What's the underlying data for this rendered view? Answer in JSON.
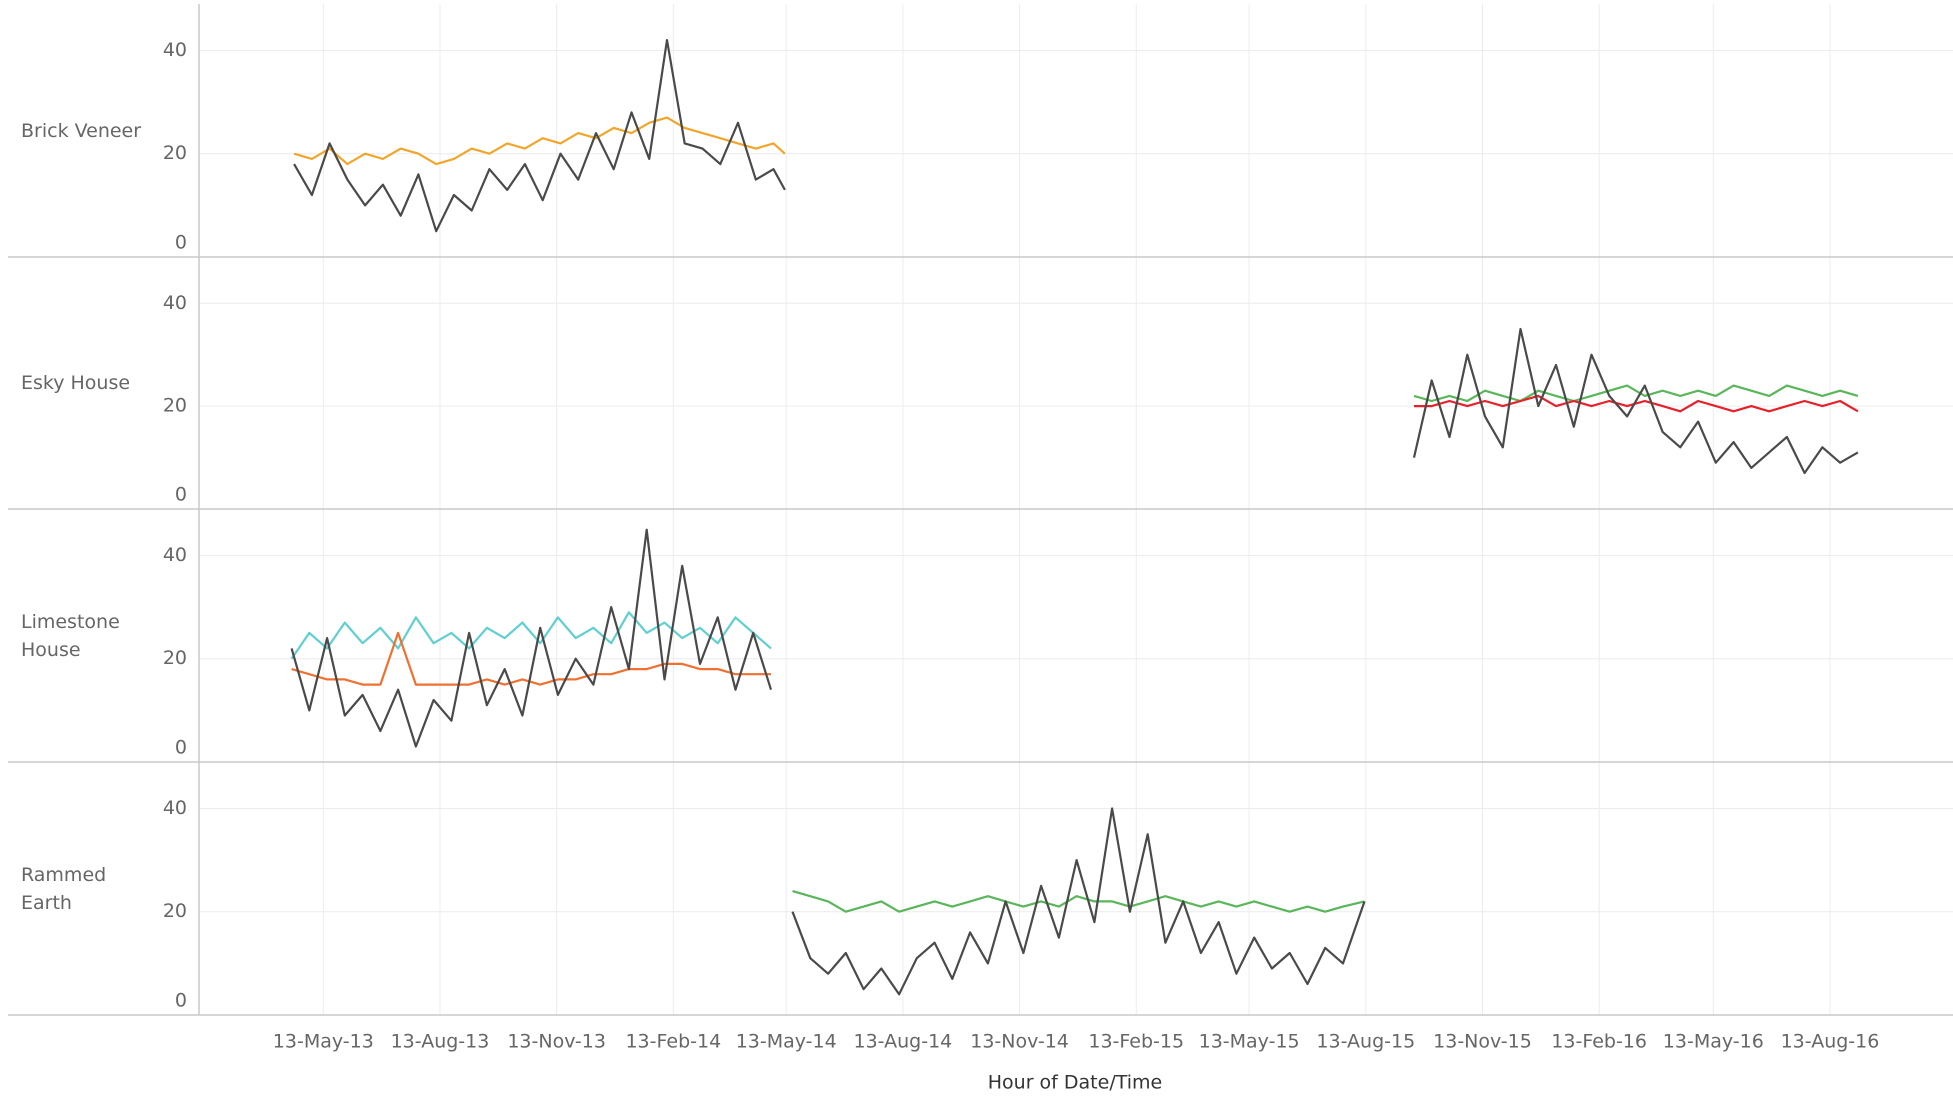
{
  "chart_data": {
    "type": "line",
    "x_label": "Hour of Date/Time",
    "xlim": [
      "2013-02-04",
      "2016-11-18"
    ],
    "xticks": [
      {
        "value": "2013-05-13",
        "label": "13-May-13"
      },
      {
        "value": "2013-08-13",
        "label": "13-Aug-13"
      },
      {
        "value": "2013-11-13",
        "label": "13-Nov-13"
      },
      {
        "value": "2014-02-13",
        "label": "13-Feb-14"
      },
      {
        "value": "2014-05-13",
        "label": "13-May-14"
      },
      {
        "value": "2014-08-13",
        "label": "13-Aug-14"
      },
      {
        "value": "2014-11-13",
        "label": "13-Nov-14"
      },
      {
        "value": "2015-02-13",
        "label": "13-Feb-15"
      },
      {
        "value": "2015-05-13",
        "label": "13-May-15"
      },
      {
        "value": "2015-08-13",
        "label": "13-Aug-15"
      },
      {
        "value": "2015-11-13",
        "label": "13-Nov-15"
      },
      {
        "value": "2016-02-13",
        "label": "13-Feb-16"
      },
      {
        "value": "2016-05-13",
        "label": "13-May-16"
      },
      {
        "value": "2016-08-13",
        "label": "13-Aug-16"
      }
    ],
    "grid": true,
    "panels": [
      {
        "label": "Brick Veneer",
        "ylim": [
          0,
          49
        ],
        "yticks": [
          0,
          20,
          40
        ],
        "x": [
          "2013-04-20",
          "2013-05-04",
          "2013-05-18",
          "2013-06-01",
          "2013-06-15",
          "2013-06-29",
          "2013-07-13",
          "2013-07-27",
          "2013-08-10",
          "2013-08-24",
          "2013-09-07",
          "2013-09-21",
          "2013-10-05",
          "2013-10-19",
          "2013-11-02",
          "2013-11-16",
          "2013-11-30",
          "2013-12-14",
          "2013-12-28",
          "2014-01-11",
          "2014-01-25",
          "2014-02-08",
          "2014-02-22",
          "2014-03-08",
          "2014-03-22",
          "2014-04-05",
          "2014-04-19",
          "2014-05-03",
          "2014-05-12"
        ],
        "series": [
          {
            "color": "#f2a52b",
            "values": [
              20,
              19,
              21,
              18,
              20,
              19,
              21,
              20,
              18,
              19,
              21,
              20,
              22,
              21,
              23,
              22,
              24,
              23,
              25,
              24,
              26,
              27,
              25,
              24,
              23,
              22,
              21,
              22,
              20
            ]
          },
          {
            "color": "#4a4a4a",
            "values": [
              18,
              12,
              22,
              15,
              10,
              14,
              8,
              16,
              5,
              12,
              9,
              17,
              13,
              18,
              11,
              20,
              15,
              24,
              17,
              28,
              19,
              42,
              22,
              21,
              18,
              26,
              15,
              17,
              13
            ]
          }
        ]
      },
      {
        "label": "Esky House",
        "ylim": [
          0,
          49
        ],
        "yticks": [
          0,
          20,
          40
        ],
        "x": [
          "2015-09-20",
          "2015-10-04",
          "2015-10-18",
          "2015-11-01",
          "2015-11-15",
          "2015-11-29",
          "2015-12-13",
          "2015-12-27",
          "2016-01-10",
          "2016-01-24",
          "2016-02-07",
          "2016-02-21",
          "2016-03-06",
          "2016-03-20",
          "2016-04-03",
          "2016-04-17",
          "2016-05-01",
          "2016-05-15",
          "2016-05-29",
          "2016-06-12",
          "2016-06-26",
          "2016-07-10",
          "2016-07-24",
          "2016-08-07",
          "2016-08-21",
          "2016-09-04"
        ],
        "series": [
          {
            "color": "#59b65a",
            "values": [
              22,
              21,
              22,
              21,
              23,
              22,
              21,
              23,
              22,
              21,
              22,
              23,
              24,
              22,
              23,
              22,
              23,
              22,
              24,
              23,
              22,
              24,
              23,
              22,
              23,
              22
            ]
          },
          {
            "color": "#e8202a",
            "values": [
              20,
              20,
              21,
              20,
              21,
              20,
              21,
              22,
              20,
              21,
              20,
              21,
              20,
              21,
              20,
              19,
              21,
              20,
              19,
              20,
              19,
              20,
              21,
              20,
              21,
              19
            ]
          },
          {
            "color": "#4a4a4a",
            "values": [
              10,
              25,
              14,
              30,
              18,
              12,
              35,
              20,
              28,
              16,
              30,
              22,
              18,
              24,
              15,
              12,
              17,
              9,
              13,
              8,
              11,
              14,
              7,
              12,
              9,
              11
            ]
          }
        ]
      },
      {
        "label": "Limestone House",
        "ylim": [
          0,
          49
        ],
        "yticks": [
          0,
          20,
          40
        ],
        "x": [
          "2013-04-18",
          "2013-05-02",
          "2013-05-16",
          "2013-05-30",
          "2013-06-13",
          "2013-06-27",
          "2013-07-11",
          "2013-07-25",
          "2013-08-08",
          "2013-08-22",
          "2013-09-05",
          "2013-09-19",
          "2013-10-03",
          "2013-10-17",
          "2013-10-31",
          "2013-11-14",
          "2013-11-28",
          "2013-12-12",
          "2013-12-26",
          "2014-01-09",
          "2014-01-23",
          "2014-02-06",
          "2014-02-20",
          "2014-03-06",
          "2014-03-20",
          "2014-04-03",
          "2014-04-17",
          "2014-05-01"
        ],
        "series": [
          {
            "color": "#5fcfcf",
            "values": [
              20,
              25,
              22,
              27,
              23,
              26,
              22,
              28,
              23,
              25,
              22,
              26,
              24,
              27,
              23,
              28,
              24,
              26,
              23,
              29,
              25,
              27,
              24,
              26,
              23,
              28,
              25,
              22
            ]
          },
          {
            "color": "#f07030",
            "values": [
              18,
              17,
              16,
              16,
              15,
              15,
              25,
              15,
              15,
              15,
              15,
              16,
              15,
              16,
              15,
              16,
              16,
              17,
              17,
              18,
              18,
              19,
              19,
              18,
              18,
              17,
              17,
              17
            ]
          },
          {
            "color": "#4a4a4a",
            "values": [
              22,
              10,
              24,
              9,
              13,
              6,
              14,
              3,
              12,
              8,
              25,
              11,
              18,
              9,
              26,
              13,
              20,
              15,
              30,
              18,
              45,
              16,
              38,
              19,
              28,
              14,
              25,
              14
            ]
          }
        ]
      },
      {
        "label": "Rammed Earth",
        "ylim": [
          0,
          49
        ],
        "yticks": [
          0,
          20,
          40
        ],
        "x": [
          "2014-05-18",
          "2014-06-01",
          "2014-06-15",
          "2014-06-29",
          "2014-07-13",
          "2014-07-27",
          "2014-08-10",
          "2014-08-24",
          "2014-09-07",
          "2014-09-21",
          "2014-10-05",
          "2014-10-19",
          "2014-11-02",
          "2014-11-16",
          "2014-11-30",
          "2014-12-14",
          "2014-12-28",
          "2015-01-11",
          "2015-01-25",
          "2015-02-08",
          "2015-02-22",
          "2015-03-08",
          "2015-03-22",
          "2015-04-05",
          "2015-04-19",
          "2015-05-03",
          "2015-05-17",
          "2015-05-31",
          "2015-06-14",
          "2015-06-28",
          "2015-07-12",
          "2015-07-26",
          "2015-08-12"
        ],
        "series": [
          {
            "color": "#59b65a",
            "values": [
              24,
              23,
              22,
              20,
              21,
              22,
              20,
              21,
              22,
              21,
              22,
              23,
              22,
              21,
              22,
              21,
              23,
              22,
              22,
              21,
              22,
              23,
              22,
              21,
              22,
              21,
              22,
              21,
              20,
              21,
              20,
              21,
              22
            ]
          },
          {
            "color": "#4a4a4a",
            "values": [
              20,
              11,
              8,
              12,
              5,
              9,
              4,
              11,
              14,
              7,
              16,
              10,
              22,
              12,
              25,
              15,
              30,
              18,
              40,
              20,
              35,
              14,
              22,
              12,
              18,
              8,
              15,
              9,
              12,
              6,
              13,
              10,
              22
            ]
          }
        ]
      }
    ]
  }
}
